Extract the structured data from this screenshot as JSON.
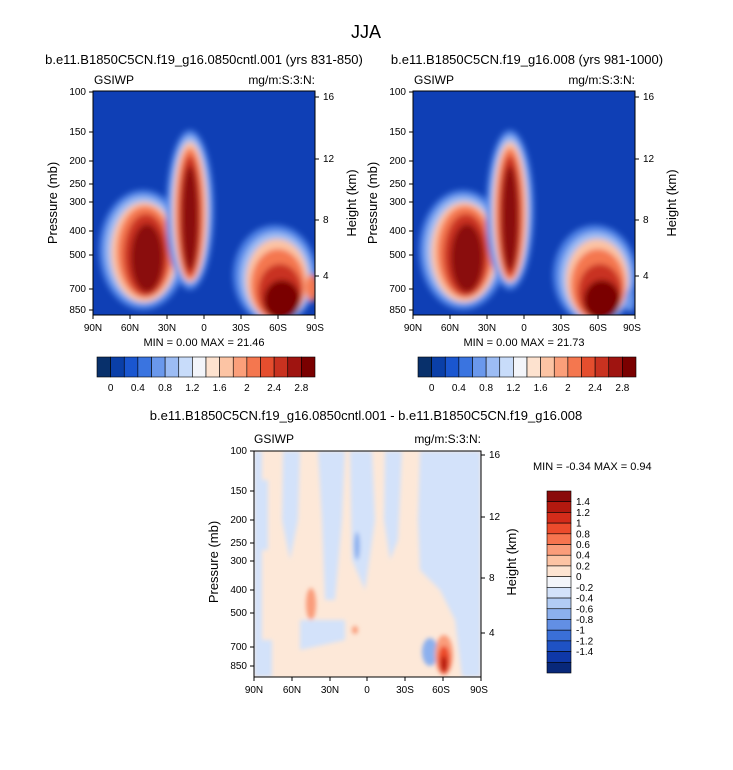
{
  "figure": {
    "title": "JJA",
    "region": "GSIWP",
    "units": "mg/m:S:3:N:"
  },
  "chart_data": [
    {
      "id": "p1",
      "type": "heatmap",
      "title": "b.e11.B1850C5CN.f19_g16.0850cntl.001 (yrs 831-850)",
      "left_label": "GSIWP",
      "right_label": "mg/m:S:3:N:",
      "ylabel": "Pressure (mb)",
      "y2label": "Height (km)",
      "x_ticks": [
        "90N",
        "60N",
        "30N",
        "0",
        "30S",
        "60S",
        "90S"
      ],
      "y_ticks": [
        "100",
        "150",
        "200",
        "250",
        "300",
        "400",
        "500",
        "700",
        "850"
      ],
      "y2_ticks": [
        "16",
        "12",
        "8",
        "4"
      ],
      "stats": "MIN =   0.00  MAX =  21.46",
      "colorbar": {
        "orientation": "horizontal",
        "labels": [
          "0",
          "0.4",
          "0.8",
          "1.2",
          "1.6",
          "2",
          "2.4",
          "2.8"
        ],
        "colors": [
          "#08306b",
          "#0a3fa8",
          "#1a56d0",
          "#3a74e0",
          "#6a98ec",
          "#9cbcf4",
          "#c8dcfa",
          "#f3f5fa",
          "#fde2cf",
          "#fcc4a4",
          "#fb9f7a",
          "#f4774f",
          "#e54e2e",
          "#c93220",
          "#9f1410",
          "#7a0000"
        ]
      },
      "background": "#0f3fb5"
    },
    {
      "id": "p2",
      "type": "heatmap",
      "title": "b.e11.B1850C5CN.f19_g16.008 (yrs 981-1000)",
      "left_label": "GSIWP",
      "right_label": "mg/m:S:3:N:",
      "ylabel": "Pressure (mb)",
      "y2label": "Height (km)",
      "x_ticks": [
        "90N",
        "60N",
        "30N",
        "0",
        "30S",
        "60S",
        "90S"
      ],
      "y_ticks": [
        "100",
        "150",
        "200",
        "250",
        "300",
        "400",
        "500",
        "700",
        "850"
      ],
      "y2_ticks": [
        "16",
        "12",
        "8",
        "4"
      ],
      "stats": "MIN =   0.00  MAX =  21.73",
      "colorbar": {
        "orientation": "horizontal",
        "labels": [
          "0",
          "0.4",
          "0.8",
          "1.2",
          "1.6",
          "2",
          "2.4",
          "2.8"
        ],
        "colors": [
          "#08306b",
          "#0a3fa8",
          "#1a56d0",
          "#3a74e0",
          "#6a98ec",
          "#9cbcf4",
          "#c8dcfa",
          "#f3f5fa",
          "#fde2cf",
          "#fcc4a4",
          "#fb9f7a",
          "#f4774f",
          "#e54e2e",
          "#c93220",
          "#9f1410",
          "#7a0000"
        ]
      },
      "background": "#0f3fb5"
    },
    {
      "id": "p3",
      "type": "heatmap",
      "title": "b.e11.B1850C5CN.f19_g16.0850cntl.001 - b.e11.B1850C5CN.f19_g16.008",
      "left_label": "GSIWP",
      "right_label": "mg/m:S:3:N:",
      "ylabel": "Pressure (mb)",
      "y2label": "Height (km)",
      "x_ticks": [
        "90N",
        "60N",
        "30N",
        "0",
        "30S",
        "60S",
        "90S"
      ],
      "y_ticks": [
        "100",
        "150",
        "200",
        "250",
        "300",
        "400",
        "500",
        "700",
        "850"
      ],
      "y2_ticks": [
        "16",
        "12",
        "8",
        "4"
      ],
      "stats": "MIN =  -0.34  MAX =   0.94",
      "colorbar": {
        "orientation": "vertical",
        "labels": [
          "1.4",
          "1.2",
          "1",
          "0.8",
          "0.6",
          "0.4",
          "0.2",
          "0",
          "-0.2",
          "-0.4",
          "-0.6",
          "-0.8",
          "-1",
          "-1.2",
          "-1.4"
        ],
        "colors": [
          "#8a0a0a",
          "#b3190f",
          "#d42c1a",
          "#ec4b2c",
          "#f7744f",
          "#fa9c7a",
          "#fcc3a4",
          "#fde4d2",
          "#f3f5fa",
          "#d3e2fa",
          "#b2ccf4",
          "#8cb0ee",
          "#628fe4",
          "#3a6fd8",
          "#1f52c4",
          "#0f38a8",
          "#08287a"
        ]
      },
      "background": "#fde8d8"
    }
  ]
}
